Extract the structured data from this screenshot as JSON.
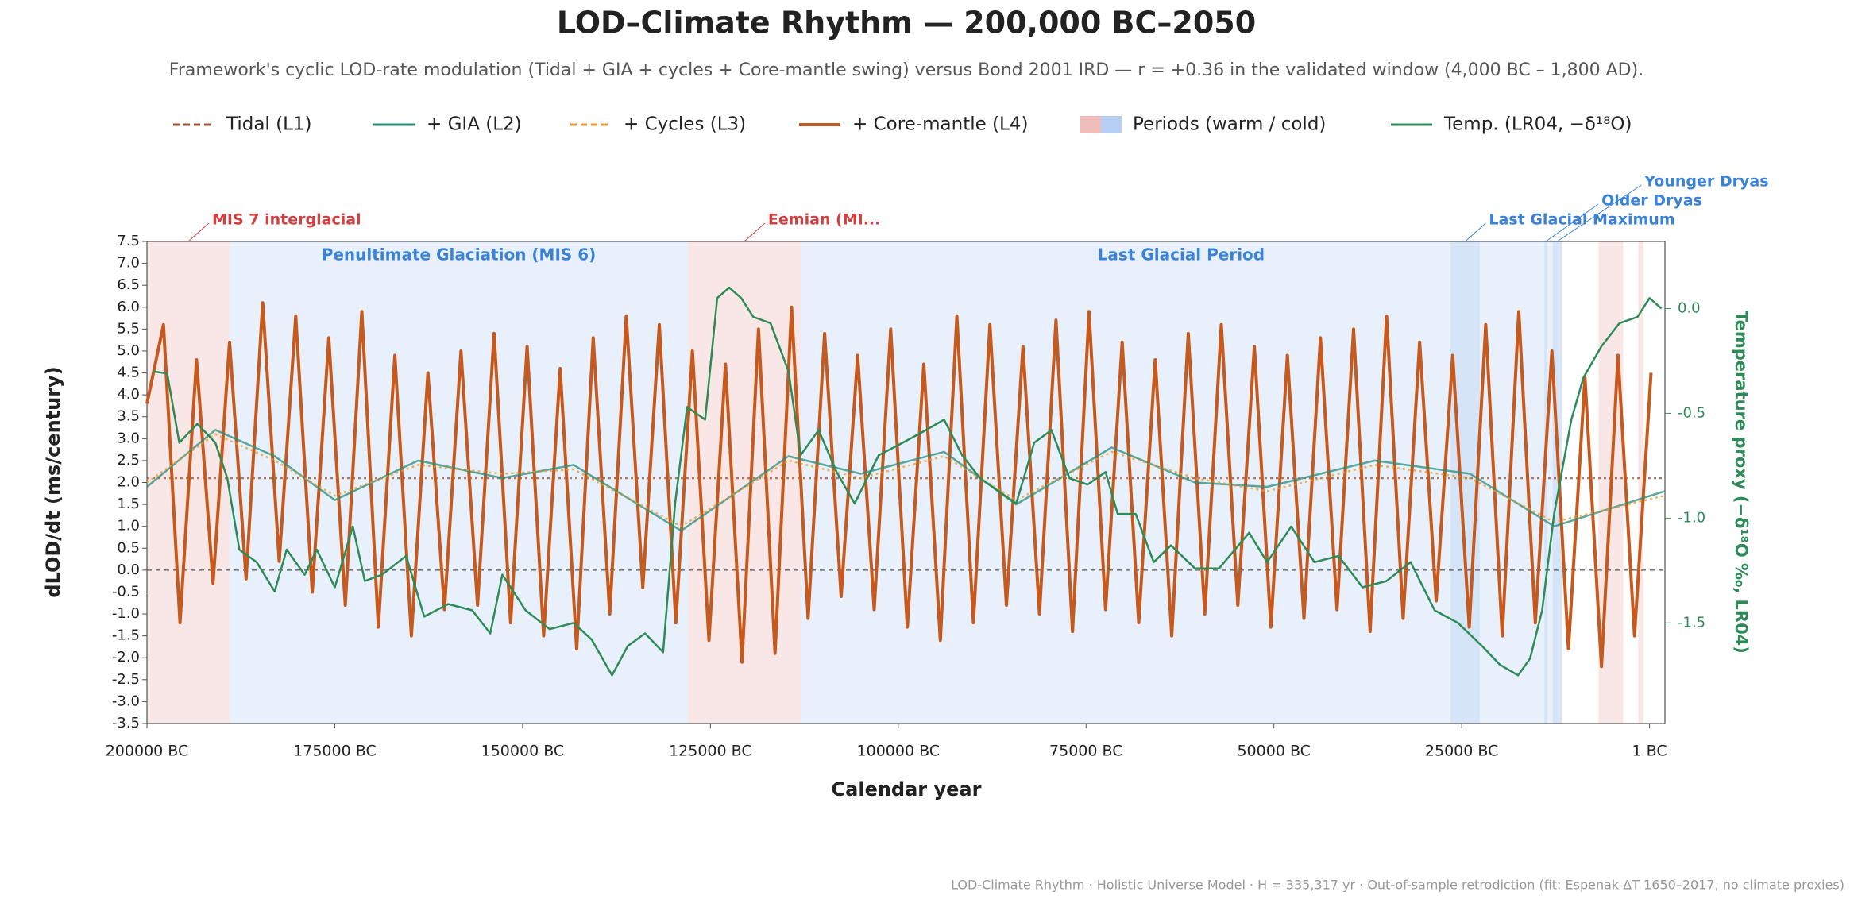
{
  "chart_data": {
    "type": "line",
    "title": "LOD–Climate Rhythm — 200,000 BC–2050",
    "subtitle": "Framework's cyclic LOD-rate modulation (Tidal + GIA + cycles + Core-mantle swing) versus Bond 2001 IRD — r = +0.36 in the validated window (4,000 BC – 1,800 AD).",
    "x_label": "Calendar year",
    "y_label": "dLOD/dt (ms/century)",
    "y2_label": "Temperature proxy (−δ¹⁸O ‰, LR04)",
    "footer": "LOD-Climate Rhythm · Holistic Universe Model · H = 335,317 yr · Out-of-sample retrodiction (fit: Espenak ΔT 1650–2017, no climate proxies)",
    "xlim": [
      -200000,
      2050
    ],
    "ylim": [
      -3.5,
      7.5
    ],
    "y2lim": [
      -1.98,
      0.32
    ],
    "xticks": [
      {
        "value": -200000,
        "label": "200000 BC"
      },
      {
        "value": -175000,
        "label": "175000 BC"
      },
      {
        "value": -150000,
        "label": "150000 BC"
      },
      {
        "value": -125000,
        "label": "125000 BC"
      },
      {
        "value": -100000,
        "label": "100000 BC"
      },
      {
        "value": -75000,
        "label": "75000 BC"
      },
      {
        "value": -50000,
        "label": "50000 BC"
      },
      {
        "value": -25000,
        "label": "25000 BC"
      },
      {
        "value": 0,
        "label": "1 BC"
      }
    ],
    "yticks": [
      7.5,
      {
        "value": 7,
        "label": "7.0"
      },
      6.5,
      {
        "value": 6,
        "label": "6.0"
      },
      5.5,
      {
        "value": 5,
        "label": "5.0"
      },
      4.5,
      {
        "value": 4,
        "label": "4.0"
      },
      3.5,
      {
        "value": 3,
        "label": "3.0"
      },
      2.5,
      {
        "value": 2,
        "label": "2.0"
      },
      1.5,
      {
        "value": 1,
        "label": "1.0"
      },
      0.5,
      {
        "value": 0,
        "label": "0.0"
      },
      -0.5,
      {
        "value": -1,
        "label": "-1.0"
      },
      -1.5,
      {
        "value": -2,
        "label": "-2.0"
      },
      -2.5,
      {
        "value": -3,
        "label": "-3.0"
      },
      -3.5
    ],
    "y2ticks": [
      {
        "value": 0,
        "label": "0.0"
      },
      -0.5,
      {
        "value": -1,
        "label": "-1.0"
      },
      -1.5
    ],
    "zero_line": true,
    "period_legend": "Periods (warm / cold)",
    "periods": [
      {
        "label": "MIS 7 interglacial",
        "kind": "warm",
        "start": -200000,
        "end": -189000
      },
      {
        "label": "Penultimate Glaciation (MIS 6)",
        "kind": "cold",
        "start": -189000,
        "end": -128000
      },
      {
        "label": "Eemian (MI...",
        "kind": "warm",
        "start": -128000,
        "end": -113000
      },
      {
        "label": "Last Glacial Period",
        "kind": "cold",
        "start": -113000,
        "end": -11700
      },
      {
        "label": "Last Glacial Maximum",
        "kind": "cold",
        "start": -26500,
        "end": -22600
      },
      {
        "label": "Older Dryas",
        "kind": "cold",
        "start": -14000,
        "end": -13600
      },
      {
        "label": "Younger Dryas",
        "kind": "cold",
        "start": -12900,
        "end": -11700
      },
      {
        "label": null,
        "kind": "warm",
        "start": -6800,
        "end": -3500
      },
      {
        "label": null,
        "kind": "warm",
        "start": -1500,
        "end": -800
      }
    ],
    "series": [
      {
        "name": "Tidal (L1)",
        "color": "#a0522d",
        "style": "dashed",
        "x": [
          -200000,
          2050
        ],
        "values": [
          2.1,
          2.1
        ]
      },
      {
        "name": "+ GIA (L2)",
        "color": "#2a8c7a",
        "style": "solid",
        "x": [
          -200000,
          -190900,
          -183000,
          -175000,
          -163900,
          -152700,
          -143200,
          -128900,
          -114600,
          -105000,
          -93900,
          -84300,
          -71600,
          -60500,
          -50900,
          -36600,
          -23900,
          -12700,
          2000
        ],
        "values": [
          1.9,
          3.2,
          2.6,
          1.6,
          2.5,
          2.1,
          2.4,
          0.9,
          2.6,
          2.2,
          2.7,
          1.5,
          2.8,
          2.0,
          1.9,
          2.5,
          2.2,
          1.0,
          1.8
        ]
      },
      {
        "name": "+ Cycles (L3)",
        "color": "#e69a2e",
        "style": "dashed",
        "x": [
          -200000,
          -190900,
          -183000,
          -175000,
          -163900,
          -152700,
          -143200,
          -128900,
          -114600,
          -105000,
          -93900,
          -84300,
          -71600,
          -60500,
          -50900,
          -36600,
          -23900,
          -12700,
          2000
        ],
        "values": [
          2.0,
          3.1,
          2.5,
          1.7,
          2.4,
          2.2,
          2.3,
          1.0,
          2.5,
          2.1,
          2.6,
          1.6,
          2.7,
          2.1,
          1.8,
          2.4,
          2.1,
          1.1,
          1.7
        ]
      },
      {
        "name": "+ Core-mantle (L4)",
        "color": "#c65a1e",
        "style": "thick",
        "x": [
          -200000,
          -197800,
          -195600,
          -193400,
          -191200,
          -189000,
          -186800,
          -184600,
          -182400,
          -180200,
          -178000,
          -175800,
          -173600,
          -171400,
          -169200,
          -167000,
          -164800,
          -162600,
          -160400,
          -158200,
          -156000,
          -153800,
          -151600,
          -149400,
          -147200,
          -145000,
          -142800,
          -140600,
          -138400,
          -136200,
          -134000,
          -131800,
          -129600,
          -127400,
          -125200,
          -123000,
          -120800,
          -118600,
          -116400,
          -114200,
          -112000,
          -109800,
          -107600,
          -105400,
          -103200,
          -101000,
          -98800,
          -96600,
          -94400,
          -92200,
          -90000,
          -87800,
          -85600,
          -83400,
          -81200,
          -79000,
          -76800,
          -74600,
          -72400,
          -70200,
          -68000,
          -65800,
          -63600,
          -61400,
          -59200,
          -57000,
          -54800,
          -52600,
          -50400,
          -48200,
          -46000,
          -43800,
          -41600,
          -39400,
          -37200,
          -35000,
          -32800,
          -30600,
          -28400,
          -26200,
          -24000,
          -21800,
          -19600,
          -17400,
          -15200,
          -13000,
          -10800,
          -8600,
          -6400,
          -4200,
          -2000,
          200
        ],
        "values": [
          3.8,
          5.6,
          -1.2,
          4.8,
          -0.3,
          5.2,
          -0.2,
          6.1,
          0.2,
          5.8,
          -0.5,
          5.3,
          -0.8,
          5.9,
          -1.3,
          4.9,
          -1.5,
          4.5,
          -0.9,
          5.0,
          -0.8,
          5.4,
          -1.2,
          5.1,
          -1.5,
          4.6,
          -1.8,
          5.3,
          -1.0,
          5.8,
          -0.4,
          5.6,
          -1.2,
          5.0,
          -1.6,
          4.7,
          -2.1,
          5.5,
          -1.9,
          6.0,
          -1.1,
          5.4,
          -0.6,
          4.9,
          -0.9,
          5.5,
          -1.3,
          4.7,
          -1.6,
          5.8,
          -1.2,
          5.6,
          -0.8,
          5.1,
          -1.0,
          5.7,
          -1.4,
          5.9,
          -0.9,
          5.2,
          -1.2,
          4.8,
          -1.5,
          5.4,
          -1.0,
          5.6,
          -0.8,
          5.1,
          -1.3,
          4.9,
          -1.1,
          5.3,
          -0.9,
          5.5,
          -1.4,
          5.8,
          -1.1,
          5.2,
          -0.7,
          4.9,
          -1.3,
          5.6,
          -1.5,
          5.9,
          -1.2,
          5.0,
          -1.8,
          4.4,
          -2.2,
          4.9,
          -1.5,
          4.5
        ]
      },
      {
        "name": "Temp. (LR04, −δ¹⁸O)",
        "color": "#2e8b57",
        "style": "solid",
        "axis": "y2",
        "x": [
          -199200,
          -197300,
          -195700,
          -193300,
          -190900,
          -189300,
          -187700,
          -185400,
          -183000,
          -181400,
          -179000,
          -177400,
          -175000,
          -172600,
          -171000,
          -168700,
          -165500,
          -163100,
          -159900,
          -156700,
          -154300,
          -152700,
          -149600,
          -146400,
          -143200,
          -140800,
          -138100,
          -136000,
          -133700,
          -131300,
          -129700,
          -128100,
          -125700,
          -124100,
          -122500,
          -120900,
          -119300,
          -117000,
          -114600,
          -113000,
          -110600,
          -108200,
          -105800,
          -102600,
          -99400,
          -96300,
          -93900,
          -91500,
          -89100,
          -86700,
          -84300,
          -81900,
          -79600,
          -77200,
          -74800,
          -72400,
          -70800,
          -68400,
          -66000,
          -63700,
          -60500,
          -57300,
          -53300,
          -50900,
          -47700,
          -44600,
          -41400,
          -38200,
          -35000,
          -31800,
          -28600,
          -25500,
          -22300,
          -19900,
          -17500,
          -15900,
          -14300,
          -12700,
          -10400,
          -8800,
          -6400,
          -4000,
          -1600,
          0,
          1600
        ],
        "values": [
          -0.3,
          -0.31,
          -0.64,
          -0.55,
          -0.64,
          -0.81,
          -1.15,
          -1.21,
          -1.35,
          -1.15,
          -1.27,
          -1.15,
          -1.33,
          -1.04,
          -1.3,
          -1.27,
          -1.18,
          -1.47,
          -1.41,
          -1.44,
          -1.55,
          -1.27,
          -1.44,
          -1.53,
          -1.5,
          -1.58,
          -1.75,
          -1.61,
          -1.55,
          -1.64,
          -0.93,
          -0.47,
          -0.53,
          0.05,
          0.1,
          0.05,
          -0.04,
          -0.07,
          -0.3,
          -0.7,
          -0.58,
          -0.78,
          -0.93,
          -0.7,
          -0.64,
          -0.58,
          -0.53,
          -0.7,
          -0.81,
          -0.87,
          -0.93,
          -0.64,
          -0.58,
          -0.81,
          -0.84,
          -0.78,
          -0.98,
          -0.98,
          -1.21,
          -1.13,
          -1.24,
          -1.24,
          -1.07,
          -1.21,
          -1.04,
          -1.21,
          -1.18,
          -1.33,
          -1.3,
          -1.21,
          -1.44,
          -1.5,
          -1.61,
          -1.7,
          -1.75,
          -1.67,
          -1.44,
          -0.98,
          -0.53,
          -0.33,
          -0.18,
          -0.07,
          -0.04,
          0.05,
          0.0
        ]
      }
    ]
  }
}
